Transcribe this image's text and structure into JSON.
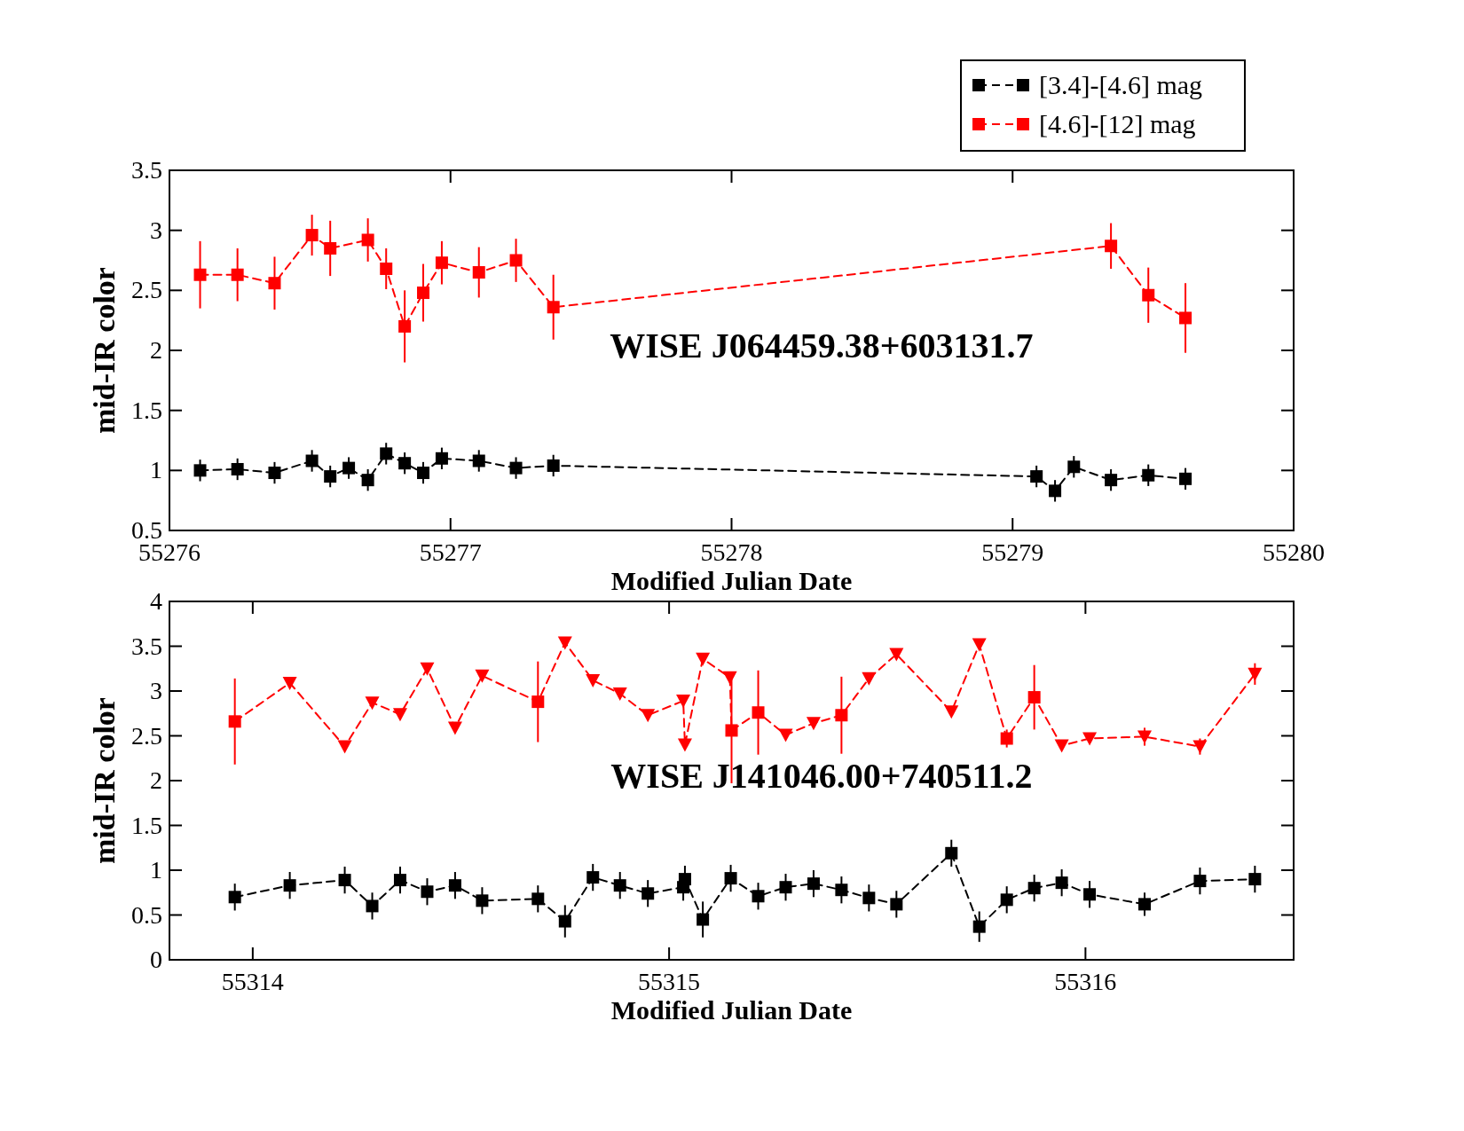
{
  "chart_data": [
    {
      "type": "line",
      "xlabel": "Modified Julian Date",
      "ylabel": "mid-IR color",
      "annotations": [
        "WISE J064459.38+603131.7"
      ],
      "xlim": [
        55276,
        55280
      ],
      "xticks": [
        55276,
        55277,
        55278,
        55279,
        55280
      ],
      "ylim": [
        0.5,
        3.5
      ],
      "yticks": [
        0.5,
        1,
        1.5,
        2,
        2.5,
        3,
        3.5
      ],
      "legend": "top right",
      "grid": false,
      "series": [
        {
          "name": "[3.4]-[4.6] mag",
          "color": "#000000",
          "marker": "square",
          "line_style": "dashed",
          "x": [
            55276.109,
            55276.242,
            55276.374,
            55276.507,
            55276.572,
            55276.638,
            55276.706,
            55276.771,
            55276.837,
            55276.903,
            55276.969,
            55277.101,
            55277.233,
            55277.366,
            55279.085,
            55279.151,
            55279.218,
            55279.35,
            55279.483,
            55279.615
          ],
          "values": [
            1.0,
            1.01,
            0.98,
            1.08,
            0.95,
            1.02,
            0.92,
            1.14,
            1.06,
            0.98,
            1.1,
            1.08,
            1.02,
            1.04,
            0.95,
            0.83,
            1.03,
            0.92,
            0.96,
            0.93
          ],
          "errors": [
            0.09,
            0.09,
            0.09,
            0.09,
            0.09,
            0.09,
            0.09,
            0.09,
            0.09,
            0.09,
            0.09,
            0.09,
            0.09,
            0.09,
            0.09,
            0.09,
            0.09,
            0.09,
            0.09,
            0.09
          ]
        },
        {
          "name": "[4.6]-[12] mag",
          "color": "#ff0000",
          "marker": "square",
          "line_style": "dashed",
          "x": [
            55276.109,
            55276.242,
            55276.374,
            55276.507,
            55276.572,
            55276.706,
            55276.771,
            55276.837,
            55276.903,
            55276.969,
            55277.101,
            55277.233,
            55277.366,
            55279.35,
            55279.483,
            55279.615
          ],
          "values": [
            2.63,
            2.63,
            2.56,
            2.96,
            2.85,
            2.92,
            2.68,
            2.2,
            2.48,
            2.73,
            2.65,
            2.75,
            2.36,
            2.87,
            2.46,
            2.27
          ],
          "errors": [
            0.28,
            0.22,
            0.22,
            0.17,
            0.23,
            0.18,
            0.17,
            0.3,
            0.24,
            0.18,
            0.21,
            0.18,
            0.27,
            0.19,
            0.23,
            0.29
          ]
        }
      ]
    },
    {
      "type": "line",
      "xlabel": "Modified Julian Date",
      "ylabel": "mid-IR color",
      "annotations": [
        "WISE J141046.00+740511.2"
      ],
      "xlim": [
        55313.8,
        55316.5
      ],
      "xticks": [
        55314,
        55315,
        55316
      ],
      "ylim": [
        0,
        4
      ],
      "yticks": [
        0,
        0.5,
        1,
        1.5,
        2,
        2.5,
        3,
        3.5,
        4
      ],
      "grid": false,
      "series": [
        {
          "color": "#000000",
          "marker": "square",
          "line_style": "dashed",
          "x": [
            55313.957,
            55314.089,
            55314.221,
            55314.287,
            55314.354,
            55314.419,
            55314.486,
            55314.551,
            55314.685,
            55314.75,
            55314.817,
            55314.882,
            55314.949,
            55315.034,
            55315.038,
            55315.081,
            55315.148,
            55315.214,
            55315.28,
            55315.347,
            55315.414,
            55315.48,
            55315.546,
            55315.678,
            55315.745,
            55315.811,
            55315.877,
            55315.943,
            55316.01,
            55316.142,
            55316.275,
            55316.407
          ],
          "values": [
            0.7,
            0.83,
            0.89,
            0.6,
            0.89,
            0.76,
            0.83,
            0.66,
            0.68,
            0.43,
            0.92,
            0.83,
            0.74,
            0.81,
            0.9,
            0.45,
            0.91,
            0.71,
            0.81,
            0.85,
            0.78,
            0.69,
            0.62,
            1.19,
            0.37,
            0.67,
            0.8,
            0.86,
            0.73,
            0.62,
            0.88,
            0.9
          ],
          "errors": [
            0.15,
            0.15,
            0.15,
            0.15,
            0.15,
            0.15,
            0.15,
            0.15,
            0.15,
            0.18,
            0.15,
            0.15,
            0.15,
            0.15,
            0.15,
            0.2,
            0.15,
            0.15,
            0.15,
            0.15,
            0.15,
            0.15,
            0.15,
            0.15,
            0.17,
            0.15,
            0.15,
            0.15,
            0.15,
            0.13,
            0.15,
            0.15
          ]
        },
        {
          "color": "#ff0000",
          "marker": "none",
          "line_style": "dashed",
          "x": [
            55313.957,
            55314.089,
            55314.221,
            55314.287,
            55314.354,
            55314.419,
            55314.486,
            55314.551,
            55314.685,
            55314.75,
            55314.817,
            55314.882,
            55314.949,
            55315.034,
            55315.038,
            55315.081,
            55315.146,
            55315.15,
            55315.214,
            55315.28,
            55315.347,
            55315.414,
            55315.48,
            55315.546,
            55315.678,
            55315.745,
            55315.811,
            55315.877,
            55315.943,
            55316.01,
            55316.142,
            55316.275,
            55316.407
          ],
          "values": [
            2.66,
            3.09,
            2.38,
            2.87,
            2.74,
            3.25,
            2.59,
            3.17,
            2.88,
            3.54,
            3.12,
            2.97,
            2.73,
            2.89,
            2.4,
            3.36,
            3.15,
            2.56,
            2.76,
            2.51,
            2.64,
            2.73,
            3.14,
            3.41,
            2.77,
            3.52,
            2.47,
            2.93,
            2.39,
            2.47,
            2.49,
            2.38,
            3.19
          ]
        },
        {
          "type": "scatter",
          "color": "#ff0000",
          "marker": "square",
          "x": [
            55313.957,
            55314.685,
            55315.15,
            55315.214,
            55315.414,
            55315.811,
            55315.877
          ],
          "values": [
            2.66,
            2.88,
            2.56,
            2.76,
            2.73,
            2.47,
            2.93
          ],
          "errors": [
            0.48,
            0.45,
            0.59,
            0.47,
            0.43,
            0.1,
            0.36
          ]
        },
        {
          "type": "scatter",
          "color": "#ff0000",
          "marker": "triangle",
          "x": [
            55314.089,
            55314.221,
            55314.287,
            55314.354,
            55314.419,
            55314.486,
            55314.551,
            55314.75,
            55314.817,
            55314.882,
            55314.949,
            55315.034,
            55315.038,
            55315.081,
            55315.146,
            55315.28,
            55315.347,
            55315.48,
            55315.546,
            55315.678,
            55315.745,
            55315.943,
            55316.01,
            55316.142,
            55316.275,
            55316.407
          ],
          "values": [
            3.09,
            2.38,
            2.87,
            2.74,
            3.25,
            2.59,
            3.17,
            3.54,
            3.12,
            2.97,
            2.73,
            2.89,
            2.4,
            3.36,
            3.15,
            2.51,
            2.64,
            3.14,
            3.41,
            2.77,
            3.52,
            2.39,
            2.47,
            2.49,
            2.38,
            3.19
          ],
          "errors": [
            null,
            null,
            null,
            null,
            null,
            null,
            null,
            null,
            null,
            null,
            null,
            null,
            null,
            null,
            null,
            null,
            null,
            null,
            null,
            null,
            null,
            null,
            null,
            0.1,
            0.09,
            0.12
          ]
        }
      ]
    }
  ]
}
